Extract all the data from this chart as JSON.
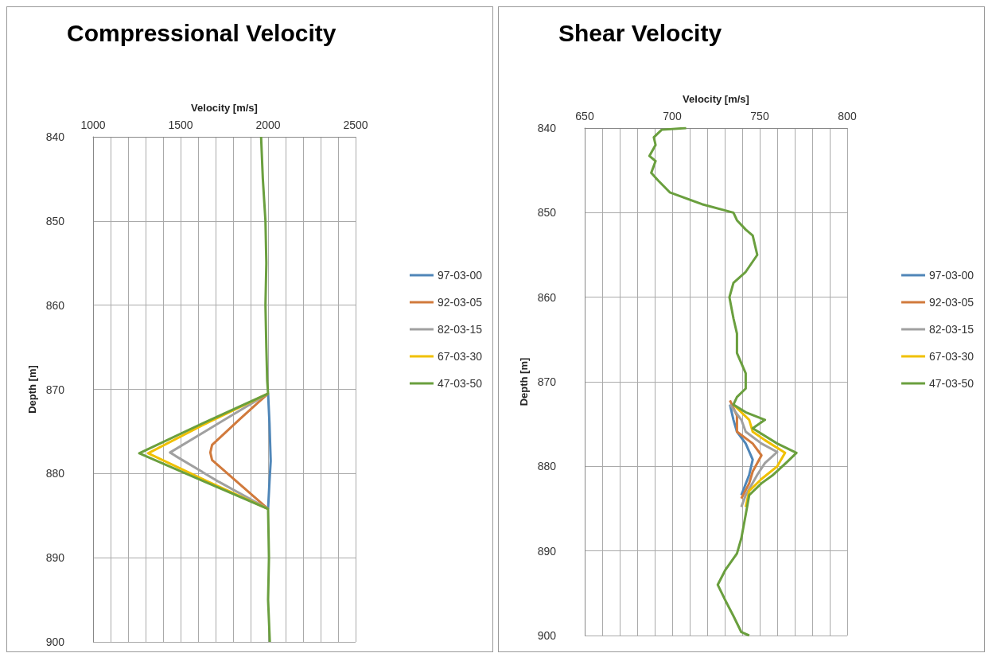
{
  "chart_data": [
    {
      "type": "line",
      "title": "Compressional Velocity",
      "xlabel": "Velocity [m/s]",
      "ylabel": "Depth [m]",
      "xlim": [
        1000,
        2500
      ],
      "xticks": [
        1000,
        {
          "value": 1100,
          "label": null
        },
        {
          "value": 1200,
          "label": null
        },
        {
          "value": 1300,
          "label": null
        },
        {
          "value": 1400,
          "label": null
        },
        1500,
        {
          "value": 1600,
          "label": null
        },
        {
          "value": 1700,
          "label": null
        },
        {
          "value": 1800,
          "label": null
        },
        {
          "value": 1900,
          "label": null
        },
        2000,
        {
          "value": 2100,
          "label": null
        },
        {
          "value": 2200,
          "label": null
        },
        {
          "value": 2300,
          "label": null
        },
        {
          "value": 2400,
          "label": null
        },
        2500
      ],
      "ylim": [
        900,
        840
      ],
      "yticks": [
        840,
        850,
        860,
        870,
        880,
        890,
        900
      ],
      "grid": true,
      "legend": "right",
      "series": [
        {
          "name": "97-03-00",
          "color": "#4f86b8",
          "x": [
            2000,
            2008,
            2015,
            2008,
            2000
          ],
          "values": [
            870.5,
            874,
            878.5,
            881,
            884.2
          ]
        },
        {
          "name": "92-03-05",
          "color": "#d17a3c",
          "x": [
            2000,
            1840,
            1680,
            1670,
            1680,
            1840,
            2000
          ],
          "values": [
            870.5,
            873.5,
            876.6,
            877.5,
            878.4,
            881.3,
            884.2
          ]
        },
        {
          "name": "82-03-15",
          "color": "#a0a0a0",
          "x": [
            2000,
            1720,
            1440,
            1470,
            1720,
            2000
          ],
          "values": [
            870.5,
            874,
            877.5,
            877.9,
            881,
            884.2
          ]
        },
        {
          "name": "67-03-30",
          "color": "#f0c000",
          "x": [
            2000,
            1650,
            1315,
            1650,
            2000
          ],
          "values": [
            870.5,
            874,
            877.6,
            880.9,
            884.2
          ]
        },
        {
          "name": "47-03-50",
          "color": "#6a9f3e",
          "x": [
            1960,
            1970,
            1985,
            1990,
            1985,
            1990,
            1995,
            2000,
            1630,
            1264,
            1630,
            2000,
            2005,
            2000,
            2010
          ],
          "values": [
            840,
            845,
            850,
            855,
            860,
            865,
            869,
            870.5,
            874,
            877.6,
            880.9,
            884.2,
            890,
            895,
            900
          ]
        }
      ]
    },
    {
      "type": "line",
      "title": "Shear Velocity",
      "xlabel": "Velocity [m/s]",
      "ylabel": "Depth [m]",
      "xlim": [
        650,
        800
      ],
      "xticks": [
        650,
        {
          "value": 660,
          "label": null
        },
        {
          "value": 670,
          "label": null
        },
        {
          "value": 680,
          "label": null
        },
        {
          "value": 690,
          "label": null
        },
        700,
        {
          "value": 710,
          "label": null
        },
        {
          "value": 720,
          "label": null
        },
        {
          "value": 730,
          "label": null
        },
        {
          "value": 740,
          "label": null
        },
        750,
        {
          "value": 760,
          "label": null
        },
        {
          "value": 770,
          "label": null
        },
        {
          "value": 780,
          "label": null
        },
        {
          "value": 790,
          "label": null
        },
        800
      ],
      "ylim": [
        900,
        840
      ],
      "yticks": [
        840,
        850,
        860,
        870,
        880,
        890,
        900
      ],
      "grid": true,
      "legend": "right",
      "series": [
        {
          "name": "97-03-00",
          "color": "#4f86b8",
          "x": [
            733,
            735,
            737,
            742,
            746,
            744,
            739.5
          ],
          "values": [
            872.7,
            874.5,
            875.9,
            877.3,
            879.2,
            881,
            883.4
          ]
        },
        {
          "name": "92-03-05",
          "color": "#d17a3c",
          "x": [
            733,
            737,
            737,
            746,
            751,
            746,
            744,
            739.5
          ],
          "values": [
            872.2,
            874,
            875.9,
            877.3,
            878.7,
            880.6,
            882,
            883.8
          ]
        },
        {
          "name": "82-03-15",
          "color": "#a0a0a0",
          "x": [
            733,
            739.5,
            742,
            751,
            760,
            753,
            748.6,
            742,
            739.5
          ],
          "values": [
            872.7,
            874.5,
            875.9,
            877.3,
            878.3,
            879.6,
            881,
            883.4,
            884.8
          ]
        },
        {
          "name": "67-03-30",
          "color": "#f0c000",
          "x": [
            735,
            744,
            746,
            753,
            764.5,
            760,
            751,
            744,
            742
          ],
          "values": [
            872.7,
            874.5,
            875.9,
            876.9,
            878.4,
            880,
            881.5,
            882.9,
            884.8
          ]
        },
        {
          "name": "47-03-50",
          "color": "#6a9f3e",
          "x": [
            708,
            694,
            689.5,
            690.5,
            687,
            690.5,
            688,
            692,
            698.6,
            717,
            735,
            737,
            742,
            746,
            748.6,
            742,
            735,
            732.7,
            735,
            737,
            737,
            742,
            742,
            737,
            735,
            742,
            753,
            746,
            760,
            771,
            765,
            757.7,
            751,
            744,
            742,
            739.5,
            737,
            730.5,
            726,
            730.5,
            735,
            739.5,
            744
          ],
          "values": [
            840,
            840.2,
            841.1,
            842,
            843.3,
            843.9,
            845.3,
            846.2,
            847.6,
            849,
            850,
            850.9,
            852,
            852.7,
            855,
            857,
            858.3,
            860,
            862.5,
            864.3,
            866.6,
            869,
            870.8,
            871.8,
            872.7,
            873.6,
            874.5,
            875.5,
            877.3,
            878.4,
            879.6,
            881,
            882,
            883.4,
            885.7,
            888.5,
            890.3,
            892.2,
            894,
            895.9,
            897.7,
            899.6,
            900
          ]
        }
      ]
    }
  ]
}
